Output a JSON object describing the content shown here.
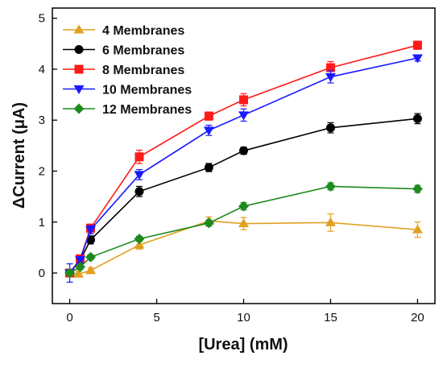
{
  "chart_data": {
    "type": "line",
    "title": "",
    "xlabel": "[Urea] (mM)",
    "ylabel": "ΔCurrent (μA)",
    "xlim": [
      -1,
      21
    ],
    "ylim": [
      -0.6,
      5.2
    ],
    "xticks": [
      0,
      5,
      10,
      15,
      20
    ],
    "yticks": [
      0,
      1,
      2,
      3,
      4,
      5
    ],
    "grid": false,
    "legend_position": "top-left",
    "series": [
      {
        "name": "4 Membranes",
        "color": "#e0a020",
        "marker": "triangle-up",
        "x": [
          0,
          0.5,
          1.2,
          4,
          8,
          10,
          15,
          20
        ],
        "y": [
          0.0,
          -0.02,
          0.05,
          0.55,
          1.02,
          0.97,
          0.99,
          0.85
        ],
        "err": [
          0.05,
          0.05,
          0.05,
          0.08,
          0.08,
          0.12,
          0.17,
          0.15
        ]
      },
      {
        "name": "6 Membranes",
        "color": "#000000",
        "marker": "circle",
        "x": [
          0,
          0.6,
          1.2,
          4,
          8,
          10,
          15,
          20
        ],
        "y": [
          0.0,
          0.25,
          0.65,
          1.6,
          2.07,
          2.4,
          2.85,
          3.03
        ],
        "err": [
          0.05,
          0.06,
          0.08,
          0.1,
          0.08,
          0.07,
          0.1,
          0.1
        ]
      },
      {
        "name": "8 Membranes",
        "color": "#ff1a1a",
        "marker": "square",
        "x": [
          0,
          0.6,
          1.2,
          4,
          8,
          10,
          15,
          20
        ],
        "y": [
          0.0,
          0.28,
          0.88,
          2.28,
          3.08,
          3.4,
          4.03,
          4.47
        ],
        "err": [
          0.05,
          0.06,
          0.08,
          0.13,
          0.08,
          0.12,
          0.12,
          0.08
        ]
      },
      {
        "name": "10 Membranes",
        "color": "#1a1aff",
        "marker": "triangle-down",
        "x": [
          0,
          0.6,
          1.2,
          4,
          8,
          10,
          15,
          20
        ],
        "y": [
          0.0,
          0.26,
          0.85,
          1.93,
          2.8,
          3.1,
          3.85,
          4.22
        ],
        "err": [
          0.18,
          0.06,
          0.08,
          0.1,
          0.1,
          0.12,
          0.12,
          0.06
        ]
      },
      {
        "name": "12 Membranes",
        "color": "#1e8a1e",
        "marker": "diamond",
        "x": [
          0,
          0.6,
          1.2,
          4,
          8,
          10,
          15,
          20
        ],
        "y": [
          0.0,
          0.12,
          0.31,
          0.67,
          0.98,
          1.31,
          1.7,
          1.65
        ],
        "err": [
          0.05,
          0.05,
          0.05,
          0.05,
          0.06,
          0.07,
          0.07,
          0.07
        ]
      }
    ]
  }
}
